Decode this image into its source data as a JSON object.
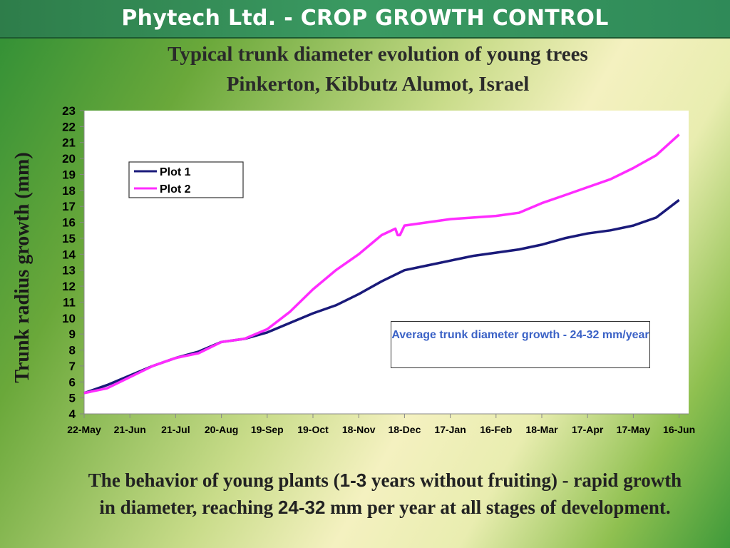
{
  "banner": {
    "title": "Phytech Ltd. - CROP GROWTH CONTROL"
  },
  "footer": {
    "part1": "The behavior of young plants (",
    "hl1": "1-3",
    "part2": " years without fruiting) - rapid growth in diameter, reaching ",
    "hl2": "24-32",
    "part3": " mm per year at all stages of development."
  },
  "colors": {
    "plot1": "#1a1a7a",
    "plot2": "#ff2cff",
    "annotation_text": "#3b62c6",
    "banner": "#2e8b57"
  },
  "chart_data": {
    "type": "line",
    "title": "Typical trunk diameter evolution of young trees",
    "subtitle": "Pinkerton, Kibbutz Alumot, Israel",
    "ylabel": "Trunk radius growth (mm)",
    "xlabel": "",
    "ylim": [
      4,
      23
    ],
    "yticks": [
      4,
      5,
      6,
      7,
      8,
      9,
      10,
      11,
      12,
      13,
      14,
      15,
      16,
      17,
      18,
      19,
      20,
      21,
      22,
      23
    ],
    "xticks": [
      "22-May",
      "21-Jun",
      "21-Jul",
      "20-Aug",
      "19-Sep",
      "19-Oct",
      "18-Nov",
      "18-Dec",
      "17-Jan",
      "16-Feb",
      "18-Mar",
      "17-Apr",
      "17-May",
      "16-Jun"
    ],
    "grid": false,
    "legend_position": "top-left",
    "annotation": "Average trunk diameter growth - 24-32 mm/year",
    "series": [
      {
        "name": "Plot 1",
        "x": [
          0,
          0.5,
          1,
          1.5,
          2,
          2.5,
          3,
          3.5,
          4,
          4.5,
          5,
          5.5,
          6,
          6.5,
          7,
          7.5,
          8,
          8.5,
          9,
          9.5,
          10,
          10.5,
          11,
          11.5,
          12,
          12.5,
          13
        ],
        "values": [
          5.3,
          5.8,
          6.4,
          7.0,
          7.5,
          7.9,
          8.5,
          8.7,
          9.1,
          9.7,
          10.3,
          10.8,
          11.5,
          12.3,
          13.0,
          13.3,
          13.6,
          13.9,
          14.1,
          14.3,
          14.6,
          15.0,
          15.3,
          15.5,
          15.8,
          16.3,
          17.4
        ]
      },
      {
        "name": "Plot 2",
        "x": [
          0,
          0.5,
          1,
          1.5,
          2,
          2.5,
          3,
          3.5,
          4,
          4.5,
          5,
          5.5,
          6,
          6.5,
          6.8,
          6.85,
          6.9,
          7,
          7.5,
          8,
          8.5,
          9,
          9.5,
          10,
          10.5,
          11,
          11.5,
          12,
          12.5,
          13
        ],
        "values": [
          5.3,
          5.6,
          6.3,
          7.0,
          7.5,
          7.8,
          8.5,
          8.7,
          9.3,
          10.4,
          11.8,
          13.0,
          14.0,
          15.2,
          15.6,
          15.2,
          15.2,
          15.8,
          16.0,
          16.2,
          16.3,
          16.4,
          16.6,
          17.2,
          17.7,
          18.2,
          18.7,
          19.4,
          20.2,
          21.5
        ]
      }
    ]
  }
}
